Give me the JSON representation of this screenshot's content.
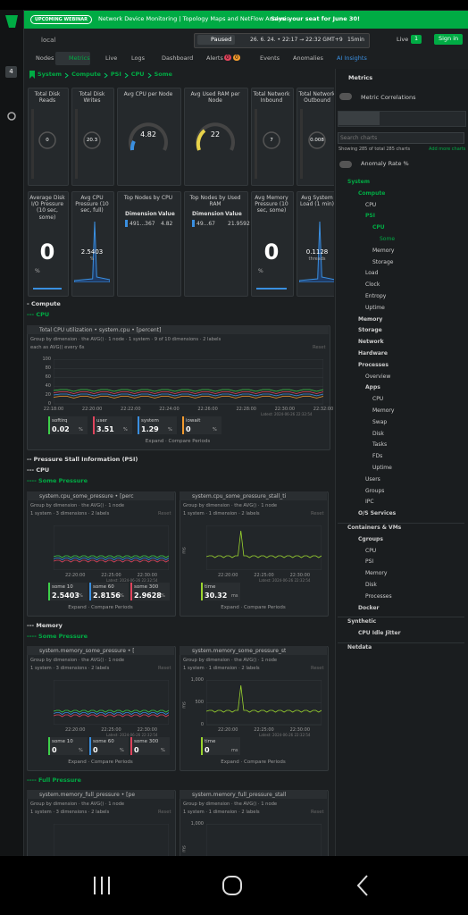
{
  "banner": {
    "badge": "UPCOMING WEBINAR",
    "text": "Network Device Monitoring | Topology Maps and NetFlow Analysis.",
    "cta": "Save your seat for June 30!"
  },
  "rail": {
    "badge": "4"
  },
  "toolbar": {
    "space": "local",
    "state": "Paused",
    "range": "26. 6. 24. • 22:17 → 22:32 GMT+9",
    "duration": "15min",
    "live": "Live",
    "live_count": "1",
    "sign_in": "Sign in"
  },
  "tabs": [
    "Nodes",
    "Metrics",
    "Live",
    "Logs",
    "Dashboard",
    "Alerts",
    "Events",
    "Anomalies",
    "AI Insights"
  ],
  "alert_counts": [
    "0",
    "0"
  ],
  "breadcrumb": [
    "System",
    "Compute",
    "PSI",
    "CPU",
    "Some"
  ],
  "cards": [
    [
      {
        "title": "Total Disk Reads",
        "kind": "dial",
        "value": "0"
      },
      {
        "title": "Total Disk Writes",
        "kind": "dial",
        "value": "20.3"
      },
      {
        "title": "Avg CPU per Node",
        "kind": "gauge",
        "value": "4.82"
      },
      {
        "title": "Avg Used RAM per Node",
        "kind": "gauge",
        "value": "22"
      },
      {
        "title": "Total Network Inbound",
        "kind": "dial",
        "value": "7"
      },
      {
        "title": "Total Network Outbound",
        "kind": "dial",
        "value": "0.008"
      }
    ],
    [
      {
        "title": "Average Disk I/O Pressure (10 sec, some)",
        "kind": "number",
        "value": "0",
        "unit": "%"
      },
      {
        "title": "Avg CPU Pressure (10 sec, full)",
        "kind": "spark",
        "value": "2.5403",
        "unit": "%"
      },
      {
        "title": "Top Nodes by CPU",
        "kind": "table",
        "headers": [
          "Dimension",
          "Value"
        ],
        "row": [
          "491...367",
          "4.82"
        ]
      },
      {
        "title": "Top Nodes by Used RAM",
        "kind": "table",
        "headers": [
          "Dimension",
          "Value"
        ],
        "row": [
          "49...67",
          "21.9592"
        ]
      },
      {
        "title": "Avg Memory Pressure (10 sec, some)",
        "kind": "number",
        "value": "0",
        "unit": "%"
      },
      {
        "title": "Avg System Load (1 min)",
        "kind": "spark",
        "value": "0.1128",
        "unit": "threads"
      }
    ]
  ],
  "sections": [
    {
      "heading": "- Compute"
    },
    {
      "heading": "--- CPU",
      "color": "#00ab44"
    },
    {
      "panels": [
        {
          "title": "Total CPU utilization • system.cpu • [percent]",
          "group": "Group by dimension · the AVG() · 1 node · 1 system · 9 of 10 dimensions · 2 labels",
          "each": "each as AVG() every 6s",
          "reset": "Reset",
          "yticks": [
            "100",
            "80",
            "60",
            "40",
            "20",
            "0"
          ],
          "xticks": [
            "22:18:00",
            "22:20:00",
            "22:22:00",
            "22:24:00",
            "22:26:00",
            "22:28:00",
            "22:30:00",
            "22:32:00"
          ],
          "latest": "Latest: 2024-06-26 22:32:54",
          "legend": [
            {
              "name": "softirq",
              "value": "0.02",
              "unit": "%",
              "color": "#3ecf4a"
            },
            {
              "name": "user",
              "value": "3.51",
              "unit": "%",
              "color": "#e0445c"
            },
            {
              "name": "system",
              "value": "1.29",
              "unit": "%",
              "color": "#3a8fe0"
            },
            {
              "name": "iowait",
              "value": "0",
              "unit": "%",
              "color": "#f29a2e"
            }
          ],
          "footer": "Expand · Compare Periods"
        }
      ]
    },
    {
      "heading": "-- Pressure Stall Information (PSI)"
    },
    {
      "heading": "--- CPU"
    },
    {
      "heading": "---- Some Pressure",
      "color": "#00ab44"
    },
    {
      "panels": [
        {
          "title": "system.cpu_some_pressure • [perc",
          "group": "Group by dimension · the AVG() · 1 node",
          "each": "1 system · 3 dimensions · 2 labels",
          "reset": "Reset",
          "xticks": [
            "22:20:00",
            "22:25:00",
            "22:30:00"
          ],
          "latest": "Latest: 2024-06-26 22:32:54",
          "legend": [
            {
              "name": "some 10",
              "value": "2.5403",
              "unit": "%",
              "color": "#3ecf4a"
            },
            {
              "name": "some 60",
              "value": "2.8156",
              "unit": "%",
              "color": "#3a8fe0"
            },
            {
              "name": "some 300",
              "value": "2.9628",
              "unit": "%",
              "color": "#e0445c"
            }
          ],
          "footer": "Expand · Compare Periods"
        },
        {
          "title": "system.cpu_some_pressure_stall_ti",
          "group": "Group by dimension · the AVG() · 1 node",
          "each": "1 system · 1 dimension · 2 labels",
          "reset": "Reset",
          "yunit": "ms",
          "xticks": [
            "22:20:00",
            "22:25:00",
            "22:30:00"
          ],
          "latest": "Latest: 2024-06-26 22:32:54",
          "legend": [
            {
              "name": "time",
              "value": "30.32",
              "unit": "ms",
              "color": "#9bd52f"
            }
          ],
          "footer": "Expand · Compare Periods"
        }
      ]
    },
    {
      "heading": "--- Memory"
    },
    {
      "heading": "---- Some Pressure",
      "color": "#00ab44"
    },
    {
      "panels": [
        {
          "title": "system.memory_some_pressure • [",
          "group": "Group by dimension · the AVG() · 1 node",
          "each": "1 system · 3 dimensions · 2 labels",
          "reset": "Reset",
          "xticks": [
            "22:20:00",
            "22:25:00",
            "22:30:00"
          ],
          "latest": "Latest: 2024-06-26 22:32:54",
          "legend": [
            {
              "name": "some 10",
              "value": "0",
              "unit": "%",
              "color": "#3ecf4a"
            },
            {
              "name": "some 60",
              "value": "0",
              "unit": "%",
              "color": "#3a8fe0"
            },
            {
              "name": "some 300",
              "value": "0",
              "unit": "%",
              "color": "#e0445c"
            }
          ],
          "footer": "Expand · Compare Periods"
        },
        {
          "title": "system.memory_some_pressure_st",
          "group": "Group by dimension · the AVG() · 1 node",
          "each": "1 system · 1 dimension · 2 labels",
          "reset": "Reset",
          "yunit": "ms",
          "yticks": [
            "1,000",
            "500",
            "0"
          ],
          "xticks": [
            "22:20:00",
            "22:25:00",
            "22:30:00"
          ],
          "latest": "Latest: 2024-06-26 22:32:54",
          "legend": [
            {
              "name": "time",
              "value": "0",
              "unit": "ms",
              "color": "#9bd52f"
            }
          ],
          "footer": "Expand · Compare Periods"
        }
      ]
    },
    {
      "heading": "---- Full Pressure",
      "color": "#00ab44"
    },
    {
      "panels": [
        {
          "title": "system.memory_full_pressure • [pe",
          "group": "Group by dimension · the AVG() · 1 node",
          "each": "1 system · 3 dimensions · 2 labels",
          "reset": "Reset"
        },
        {
          "title": "system.memory_full_pressure_stall",
          "group": "Group by dimension · the AVG() · 1 node",
          "each": "1 system · 1 dimension · 2 labels",
          "reset": "Reset",
          "yunit": "ms",
          "yticks": [
            "1,000",
            "500"
          ]
        }
      ]
    }
  ],
  "sidebar": {
    "title": "Metrics",
    "correlations": "Metric Correlations",
    "search": "Search charts",
    "showing": "Showing 285 of total 285 charts",
    "add": "Add more charts",
    "anomaly": "Anomaly Rate %",
    "tree": [
      {
        "label": "System",
        "children": [
          {
            "label": "Compute",
            "children": [
              {
                "label": "CPU"
              },
              {
                "label": "PSI",
                "children": [
                  {
                    "label": "CPU",
                    "children": [
                      {
                        "label": "Some"
                      }
                    ]
                  },
                  {
                    "label": "Memory"
                  },
                  {
                    "label": "Storage"
                  }
                ]
              },
              {
                "label": "Load"
              },
              {
                "label": "Clock"
              },
              {
                "label": "Entropy"
              },
              {
                "label": "Uptime"
              }
            ]
          },
          {
            "label": "Memory"
          },
          {
            "label": "Storage"
          },
          {
            "label": "Network"
          },
          {
            "label": "Hardware"
          },
          {
            "label": "Processes",
            "children": [
              {
                "label": "Overview"
              },
              {
                "label": "Apps",
                "children": [
                  {
                    "label": "CPU"
                  },
                  {
                    "label": "Memory"
                  },
                  {
                    "label": "Swap"
                  },
                  {
                    "label": "Disk"
                  },
                  {
                    "label": "Tasks"
                  },
                  {
                    "label": "FDs"
                  },
                  {
                    "label": "Uptime"
                  }
                ]
              },
              {
                "label": "Users"
              },
              {
                "label": "Groups"
              },
              {
                "label": "IPC"
              }
            ]
          },
          {
            "label": "O/S Services"
          }
        ]
      },
      {
        "label": "Containers & VMs",
        "children": [
          {
            "label": "Cgroups",
            "children": [
              {
                "label": "CPU"
              },
              {
                "label": "PSI"
              },
              {
                "label": "Memory"
              },
              {
                "label": "Disk"
              },
              {
                "label": "Processes"
              }
            ]
          },
          {
            "label": "Docker"
          }
        ]
      },
      {
        "label": "Synthetic",
        "children": [
          {
            "label": "CPU Idle Jitter"
          }
        ]
      },
      {
        "label": "Netdata"
      }
    ]
  }
}
